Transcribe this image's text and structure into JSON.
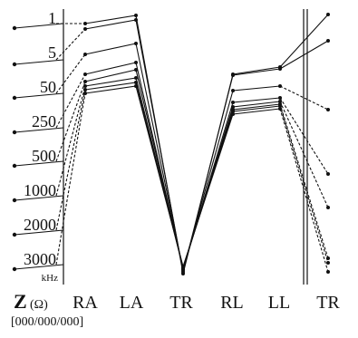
{
  "freq_label": {
    "unit": "kHz",
    "labels": [
      "1",
      "5",
      "50",
      "250",
      "500",
      "1000",
      "2000",
      "3000"
    ]
  },
  "impedance_label": {
    "symbol": "Z",
    "unit": "(Ω)"
  },
  "leads": {
    "left": [
      "RA",
      "LA",
      "TR",
      "RL",
      "LL"
    ],
    "right": [
      "TR"
    ]
  },
  "caption": "[000/000/000]",
  "colors": {
    "ink": "#111111",
    "background": "#ffffff"
  }
}
